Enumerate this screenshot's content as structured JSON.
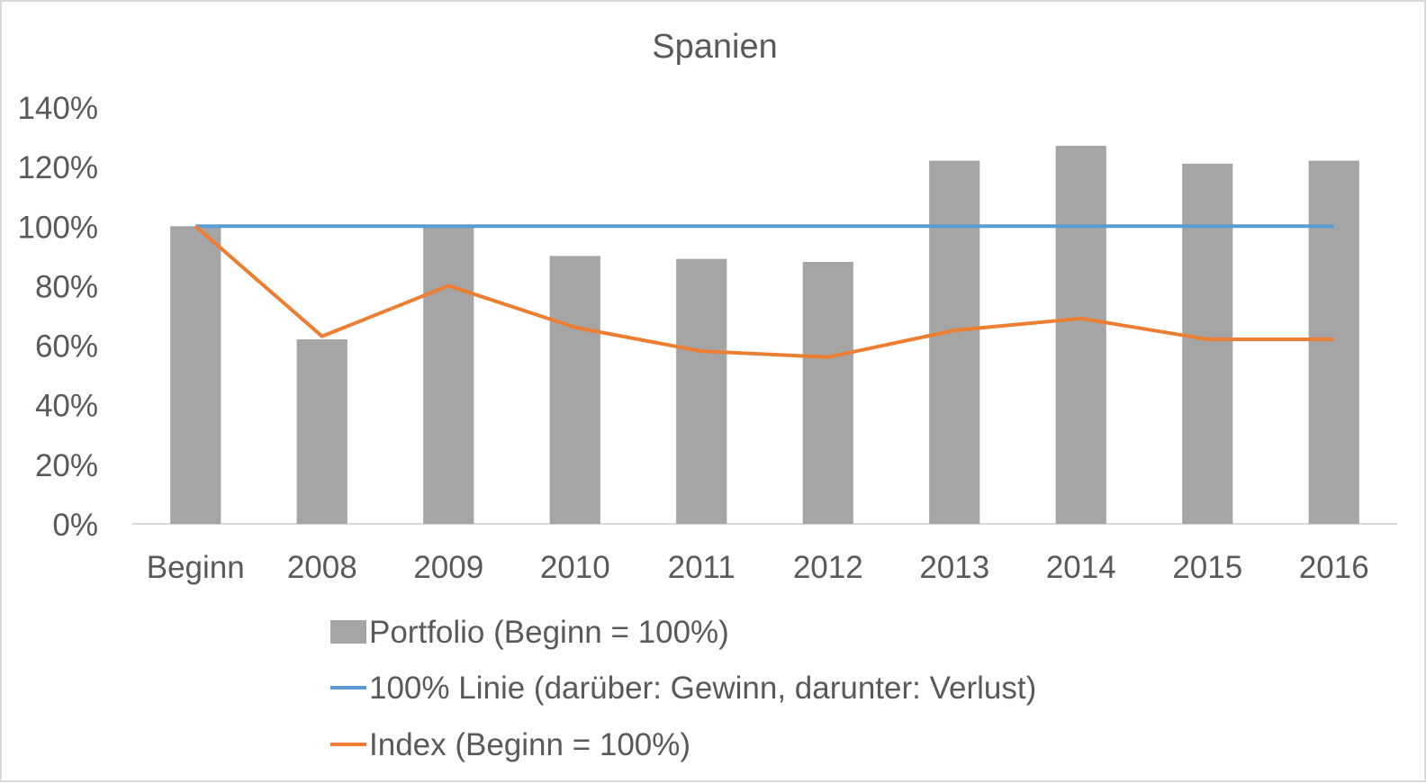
{
  "chart_data": {
    "type": "bar",
    "title": "Spanien",
    "xlabel": "",
    "ylabel": "",
    "categories": [
      "Beginn",
      "2008",
      "2009",
      "2010",
      "2011",
      "2012",
      "2013",
      "2014",
      "2015",
      "2016"
    ],
    "ylim": [
      0,
      1.4
    ],
    "yticks": [
      0,
      0.2,
      0.4,
      0.6,
      0.8,
      1.0,
      1.2,
      1.4
    ],
    "ytick_labels": [
      "0%",
      "20%",
      "40%",
      "60%",
      "80%",
      "100%",
      "120%",
      "140%"
    ],
    "grid": false,
    "legend_position": "bottom",
    "series": [
      {
        "name": "Portfolio (Beginn = 100%)",
        "type": "bar",
        "color": "#a5a5a5",
        "values": [
          1.0,
          0.62,
          1.0,
          0.9,
          0.89,
          0.88,
          1.22,
          1.27,
          1.21,
          1.22
        ]
      },
      {
        "name": "100% Linie (darüber: Gewinn, darunter: Verlust)",
        "type": "line",
        "color": "#5b9bd5",
        "values": [
          1.0,
          1.0,
          1.0,
          1.0,
          1.0,
          1.0,
          1.0,
          1.0,
          1.0,
          1.0
        ]
      },
      {
        "name": "Index (Beginn = 100%)",
        "type": "line",
        "color": "#ed7d31",
        "values": [
          1.0,
          0.63,
          0.8,
          0.66,
          0.58,
          0.56,
          0.65,
          0.69,
          0.62,
          0.62
        ]
      }
    ]
  }
}
